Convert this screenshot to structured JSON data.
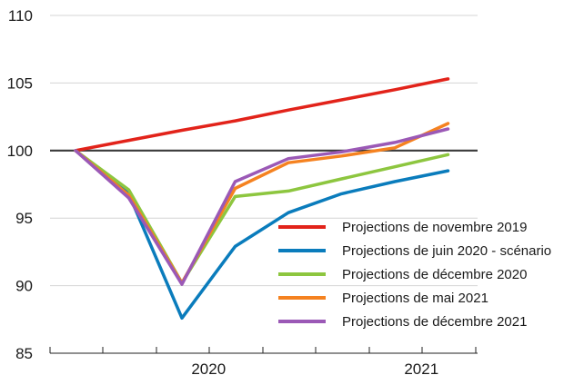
{
  "chart_data": {
    "type": "line",
    "title": "",
    "xlabel": "",
    "ylabel": "",
    "ylim": [
      85,
      110
    ],
    "yticks": [
      85,
      90,
      95,
      100,
      105,
      110
    ],
    "x": [
      0,
      1,
      2,
      3,
      4,
      5,
      6,
      7
    ],
    "x_tick_labels": [
      {
        "label": "2020",
        "at": 2.5
      },
      {
        "label": "2021",
        "at": 6.5
      }
    ],
    "reference_line": 100,
    "grid": "horizontal",
    "legend_position": "bottom-right",
    "series": [
      {
        "name": "Projections de novembre 2019",
        "color": "#e2231a",
        "values": [
          100,
          100.75,
          101.5,
          102.2,
          103.0,
          103.75,
          104.5,
          105.3
        ]
      },
      {
        "name": "Projections de juin 2020 - scénario",
        "color": "#0a7cbc",
        "values": [
          100,
          96.8,
          87.6,
          92.9,
          95.4,
          96.8,
          97.7,
          98.5
        ]
      },
      {
        "name": "Projections de décembre 2020",
        "color": "#8dc63f",
        "values": [
          100,
          97.1,
          90.2,
          96.6,
          97.0,
          97.9,
          98.8,
          99.7
        ]
      },
      {
        "name": "Projections de mai 2021",
        "color": "#f58220",
        "values": [
          100,
          96.7,
          90.2,
          97.2,
          99.1,
          99.6,
          100.2,
          102.0
        ]
      },
      {
        "name": "Projections de décembre 2021",
        "color": "#9b59b6",
        "values": [
          100,
          96.5,
          90.1,
          97.7,
          99.4,
          99.9,
          100.6,
          101.6
        ]
      }
    ]
  }
}
